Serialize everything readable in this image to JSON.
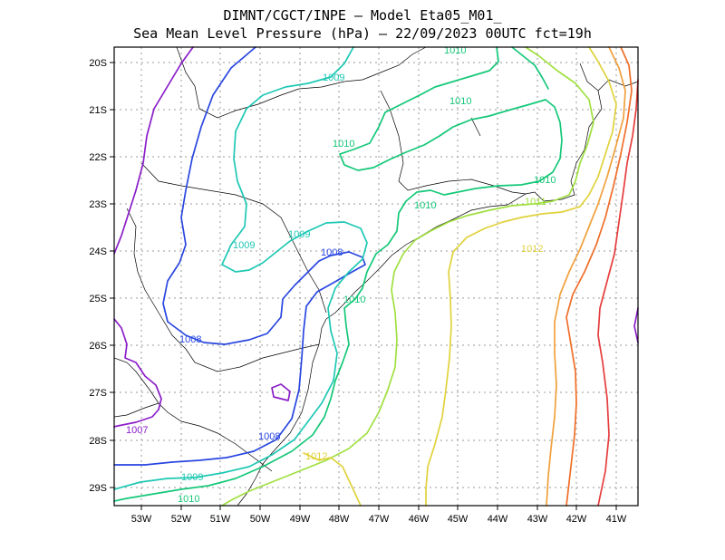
{
  "title_line1": "DIMNT/CGCT/INPE —  Model Eta05_M01_",
  "title_line2": "Sea Mean Level Pressure (hPa) — 22/09/2023 00UTC fct=19h",
  "lon_labels": [
    "53W",
    "52W",
    "51W",
    "50W",
    "49W",
    "48W",
    "47W",
    "46W",
    "45W",
    "44W",
    "43W",
    "42W",
    "41W"
  ],
  "lat_labels": [
    "20S",
    "21S",
    "22S",
    "23S",
    "24S",
    "25S",
    "26S",
    "27S",
    "28S",
    "29S"
  ],
  "contour_labels": [
    {
      "text": "1007",
      "color": "#8a1ec8"
    },
    {
      "text": "1008",
      "color": "#2846e0"
    },
    {
      "text": "1008",
      "color": "#2846e0"
    },
    {
      "text": "1008",
      "color": "#2846e0"
    },
    {
      "text": "1009",
      "color": "#1ec8b4"
    },
    {
      "text": "1009",
      "color": "#1ec8b4"
    },
    {
      "text": "1009",
      "color": "#1ec8b4"
    },
    {
      "text": "1009",
      "color": "#1ec8b4"
    },
    {
      "text": "1010",
      "color": "#14c878"
    },
    {
      "text": "1010",
      "color": "#14c878"
    },
    {
      "text": "1010",
      "color": "#14c878"
    },
    {
      "text": "1010",
      "color": "#14c878"
    },
    {
      "text": "1010",
      "color": "#14c878"
    },
    {
      "text": "1010",
      "color": "#14c878"
    },
    {
      "text": "1010",
      "color": "#14c878"
    },
    {
      "text": "1011",
      "color": "#a0e040"
    },
    {
      "text": "1012",
      "color": "#e0d23c"
    },
    {
      "text": "1012",
      "color": "#e0d23c"
    }
  ],
  "colors": {
    "p1007": "#8a1ec8",
    "p1008": "#2846e0",
    "p1009": "#1ec8b4",
    "p1010": "#14c878",
    "p1011": "#a0e040",
    "p1012": "#e0d23c",
    "p1013": "#f0a03c",
    "p1014": "#f06e28",
    "p1015": "#e63c3c"
  }
}
